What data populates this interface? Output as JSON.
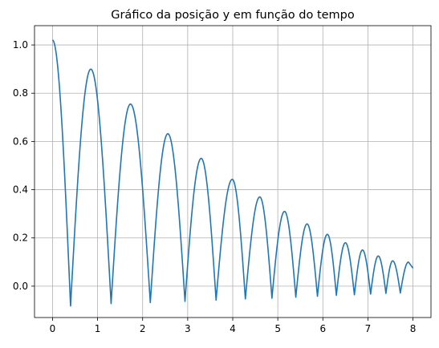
{
  "chart_data": {
    "type": "line",
    "title": "Gráfico da posição y em função do tempo",
    "xlabel": "",
    "ylabel": "",
    "xlim": [
      -0.4,
      8.4
    ],
    "ylim": [
      -0.13,
      1.08
    ],
    "xticks": [
      0,
      1,
      2,
      3,
      4,
      5,
      6,
      7,
      8
    ],
    "xtick_labels": [
      "0",
      "1",
      "2",
      "3",
      "4",
      "5",
      "6",
      "7",
      "8"
    ],
    "yticks": [
      0.0,
      0.2,
      0.4,
      0.6,
      0.8,
      1.0
    ],
    "ytick_labels": [
      "0.0",
      "0.2",
      "0.4",
      "0.6",
      "0.8",
      "1.0"
    ],
    "grid": true,
    "legend": "none",
    "series": [
      {
        "color": "#1f77b4",
        "peaks": [
          {
            "x": 0.0,
            "y": 1.02
          },
          {
            "x": 0.85,
            "y": 0.9
          },
          {
            "x": 1.73,
            "y": 0.755
          },
          {
            "x": 2.56,
            "y": 0.632
          },
          {
            "x": 3.3,
            "y": 0.53
          },
          {
            "x": 3.99,
            "y": 0.443
          },
          {
            "x": 4.6,
            "y": 0.37
          },
          {
            "x": 5.15,
            "y": 0.31
          },
          {
            "x": 5.65,
            "y": 0.258
          },
          {
            "x": 6.1,
            "y": 0.215
          },
          {
            "x": 6.5,
            "y": 0.18
          },
          {
            "x": 6.88,
            "y": 0.15
          },
          {
            "x": 7.23,
            "y": 0.125
          },
          {
            "x": 7.55,
            "y": 0.105
          },
          {
            "x": 7.9,
            "y": 0.1
          },
          {
            "x": 8.0,
            "y": 0.075
          }
        ],
        "troughs": [
          {
            "x": 0.4,
            "y": -0.082
          },
          {
            "x": 1.3,
            "y": -0.072
          },
          {
            "x": 2.17,
            "y": -0.068
          },
          {
            "x": 2.94,
            "y": -0.063
          },
          {
            "x": 3.63,
            "y": -0.058
          },
          {
            "x": 4.28,
            "y": -0.053
          },
          {
            "x": 4.87,
            "y": -0.05
          },
          {
            "x": 5.4,
            "y": -0.046
          },
          {
            "x": 5.88,
            "y": -0.042
          },
          {
            "x": 6.3,
            "y": -0.038
          },
          {
            "x": 6.7,
            "y": -0.036
          },
          {
            "x": 7.06,
            "y": -0.033
          },
          {
            "x": 7.4,
            "y": -0.03
          },
          {
            "x": 7.72,
            "y": -0.028
          }
        ]
      }
    ]
  }
}
